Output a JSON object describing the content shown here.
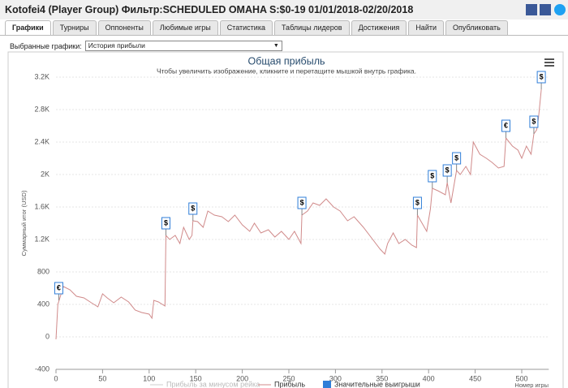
{
  "header": {
    "title": "Kotofei4 (Player Group) Фильтр:SCHEDULED OMAHA S:$0-19 01/01/2018-02/20/2018"
  },
  "tabs": [
    "Графики",
    "Турниры",
    "Оппоненты",
    "Любимые игры",
    "Статистика",
    "Таблицы лидеров",
    "Достижения",
    "Найти",
    "Опубликовать"
  ],
  "selector": {
    "label": "Выбранные графики:",
    "value": "История прибыли"
  },
  "chart_data": {
    "type": "line",
    "title": "Общая прибыль",
    "subtitle": "Чтобы увеличить изображение, кликните и перетащите мышкой внутрь графика.",
    "y_label": "Суммарный итог (USD)",
    "x_label": "Номер игры",
    "xlim": [
      0,
      529
    ],
    "xticks": [
      0,
      50,
      100,
      150,
      200,
      250,
      300,
      350,
      400,
      450,
      500
    ],
    "ylim": [
      -400,
      3200
    ],
    "yticks": [
      -400,
      0,
      400,
      800,
      {
        "value": 1200,
        "label": "1.2K"
      },
      {
        "value": 1600,
        "label": "1.6K"
      },
      {
        "value": 2000,
        "label": "2K"
      },
      {
        "value": 2400,
        "label": "2.4K"
      },
      {
        "value": 2800,
        "label": "2.8K"
      },
      {
        "value": 3200,
        "label": "3.2K"
      }
    ],
    "grid": true,
    "series": [
      {
        "name": "Прибыль",
        "color": "#d08a8a",
        "x": [
          0,
          2,
          8,
          15,
          22,
          30,
          38,
          45,
          50,
          55,
          62,
          70,
          78,
          85,
          92,
          100,
          103,
          105,
          110,
          117,
          118,
          122,
          128,
          133,
          137,
          143,
          146,
          147,
          152,
          158,
          163,
          170,
          178,
          185,
          192,
          200,
          208,
          213,
          220,
          228,
          235,
          242,
          250,
          256,
          263,
          264,
          270,
          276,
          283,
          290,
          298,
          305,
          313,
          320,
          330,
          340,
          348,
          353,
          356,
          362,
          368,
          375,
          382,
          387,
          388,
          393,
          398,
          402,
          404,
          410,
          418,
          420,
          424,
          430,
          434,
          440,
          445,
          448,
          455,
          462,
          468,
          475,
          481,
          483,
          490,
          496,
          500,
          505,
          510,
          513,
          516,
          518,
          521
        ],
        "values": [
          -30,
          400,
          620,
          580,
          500,
          480,
          420,
          370,
          530,
          480,
          420,
          490,
          430,
          330,
          300,
          280,
          230,
          450,
          430,
          380,
          1250,
          1200,
          1250,
          1150,
          1350,
          1200,
          1250,
          1430,
          1420,
          1350,
          1550,
          1500,
          1480,
          1420,
          1500,
          1380,
          1300,
          1400,
          1280,
          1320,
          1230,
          1300,
          1200,
          1300,
          1150,
          1500,
          1550,
          1650,
          1620,
          1700,
          1600,
          1550,
          1430,
          1480,
          1350,
          1200,
          1080,
          1020,
          1150,
          1280,
          1150,
          1200,
          1130,
          1100,
          1500,
          1400,
          1300,
          1580,
          1830,
          1800,
          1750,
          1900,
          1650,
          2050,
          2000,
          2100,
          2000,
          2400,
          2250,
          2200,
          2150,
          2080,
          2100,
          2450,
          2350,
          2300,
          2200,
          2350,
          2250,
          2500,
          2550,
          2700,
          3050
        ]
      }
    ],
    "legend_extra": [
      {
        "name": "Прибыль за минусом рейка",
        "color": "#cccccc"
      },
      {
        "name": "Значительные выигрыши",
        "color": "#2f7ed8"
      }
    ],
    "flags": [
      {
        "x": 3,
        "y": 450,
        "label": "€"
      },
      {
        "x": 118,
        "y": 1250,
        "label": "$"
      },
      {
        "x": 147,
        "y": 1430,
        "label": "$"
      },
      {
        "x": 264,
        "y": 1500,
        "label": "$"
      },
      {
        "x": 388,
        "y": 1500,
        "label": "$"
      },
      {
        "x": 404,
        "y": 1830,
        "label": "$"
      },
      {
        "x": 420,
        "y": 1900,
        "label": "$"
      },
      {
        "x": 430,
        "y": 2050,
        "label": "$"
      },
      {
        "x": 483,
        "y": 2450,
        "label": "€"
      },
      {
        "x": 513,
        "y": 2500,
        "label": "$"
      },
      {
        "x": 521,
        "y": 3050,
        "label": "$"
      }
    ]
  }
}
